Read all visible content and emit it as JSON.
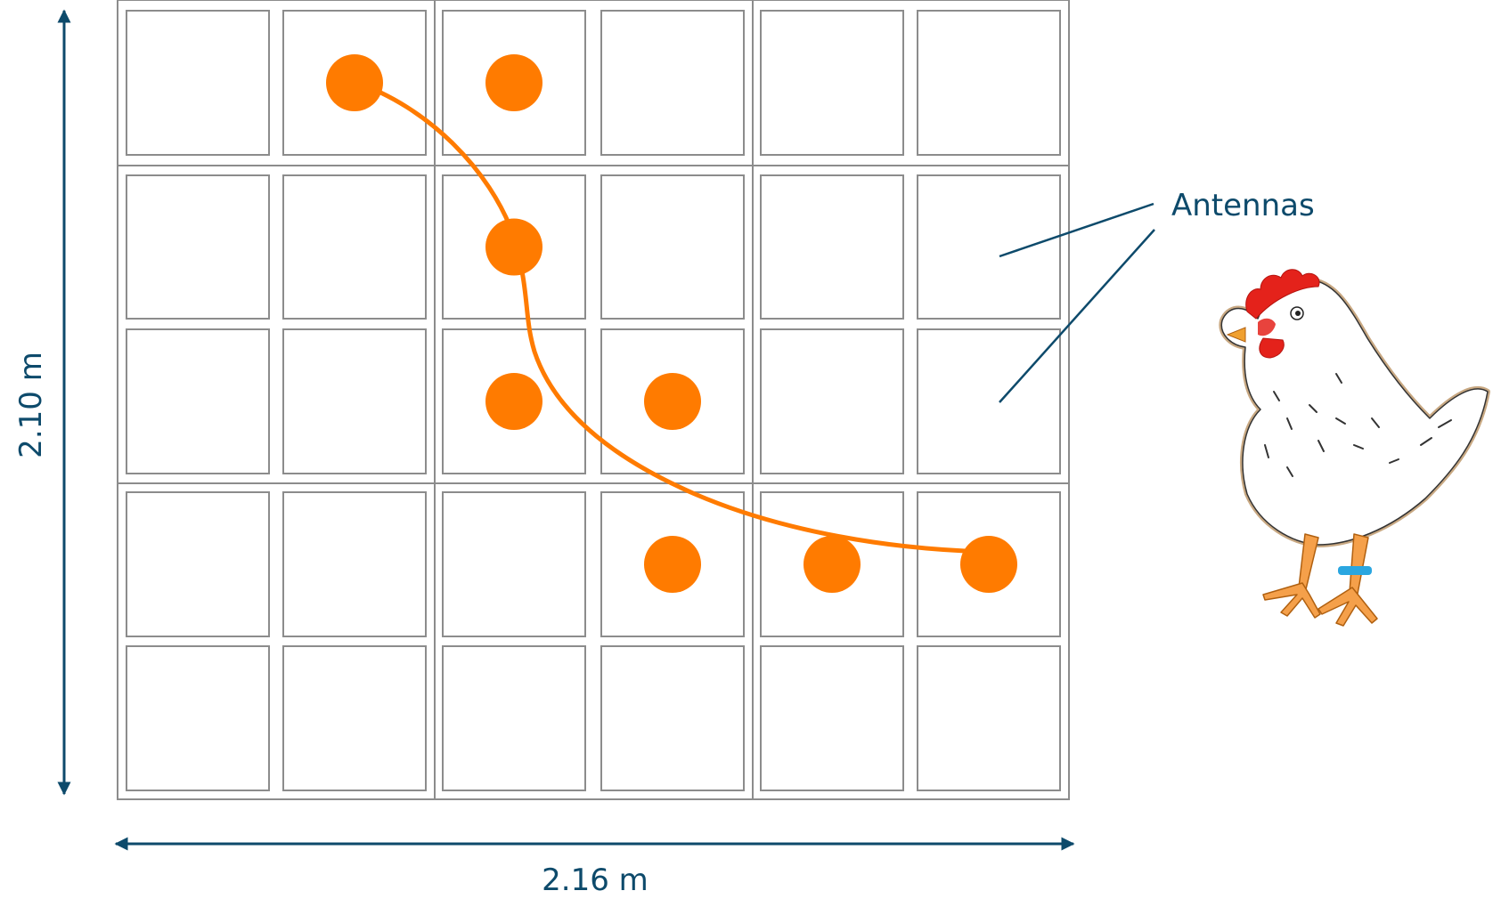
{
  "labels": {
    "height": "2.10 m",
    "width": "2.16 m",
    "antennas": "Antennas"
  },
  "grid": {
    "columns": 6,
    "rows": 5
  },
  "colors": {
    "track": "#ff7b00",
    "dimension": "#0d4a6b",
    "grid_line": "#8c8c8c",
    "leg_band": "#2aa6e0",
    "comb": "#e4221b"
  },
  "detections": [
    {
      "col": 2,
      "row": 1
    },
    {
      "col": 3,
      "row": 1
    },
    {
      "col": 3,
      "row": 2
    },
    {
      "col": 3,
      "row": 3
    },
    {
      "col": 4,
      "row": 3
    },
    {
      "col": 4,
      "row": 4
    },
    {
      "col": 5,
      "row": 4
    },
    {
      "col": 6,
      "row": 4
    }
  ],
  "icons": {
    "bird": "chicken-icon",
    "tag": "leg-band-icon"
  }
}
